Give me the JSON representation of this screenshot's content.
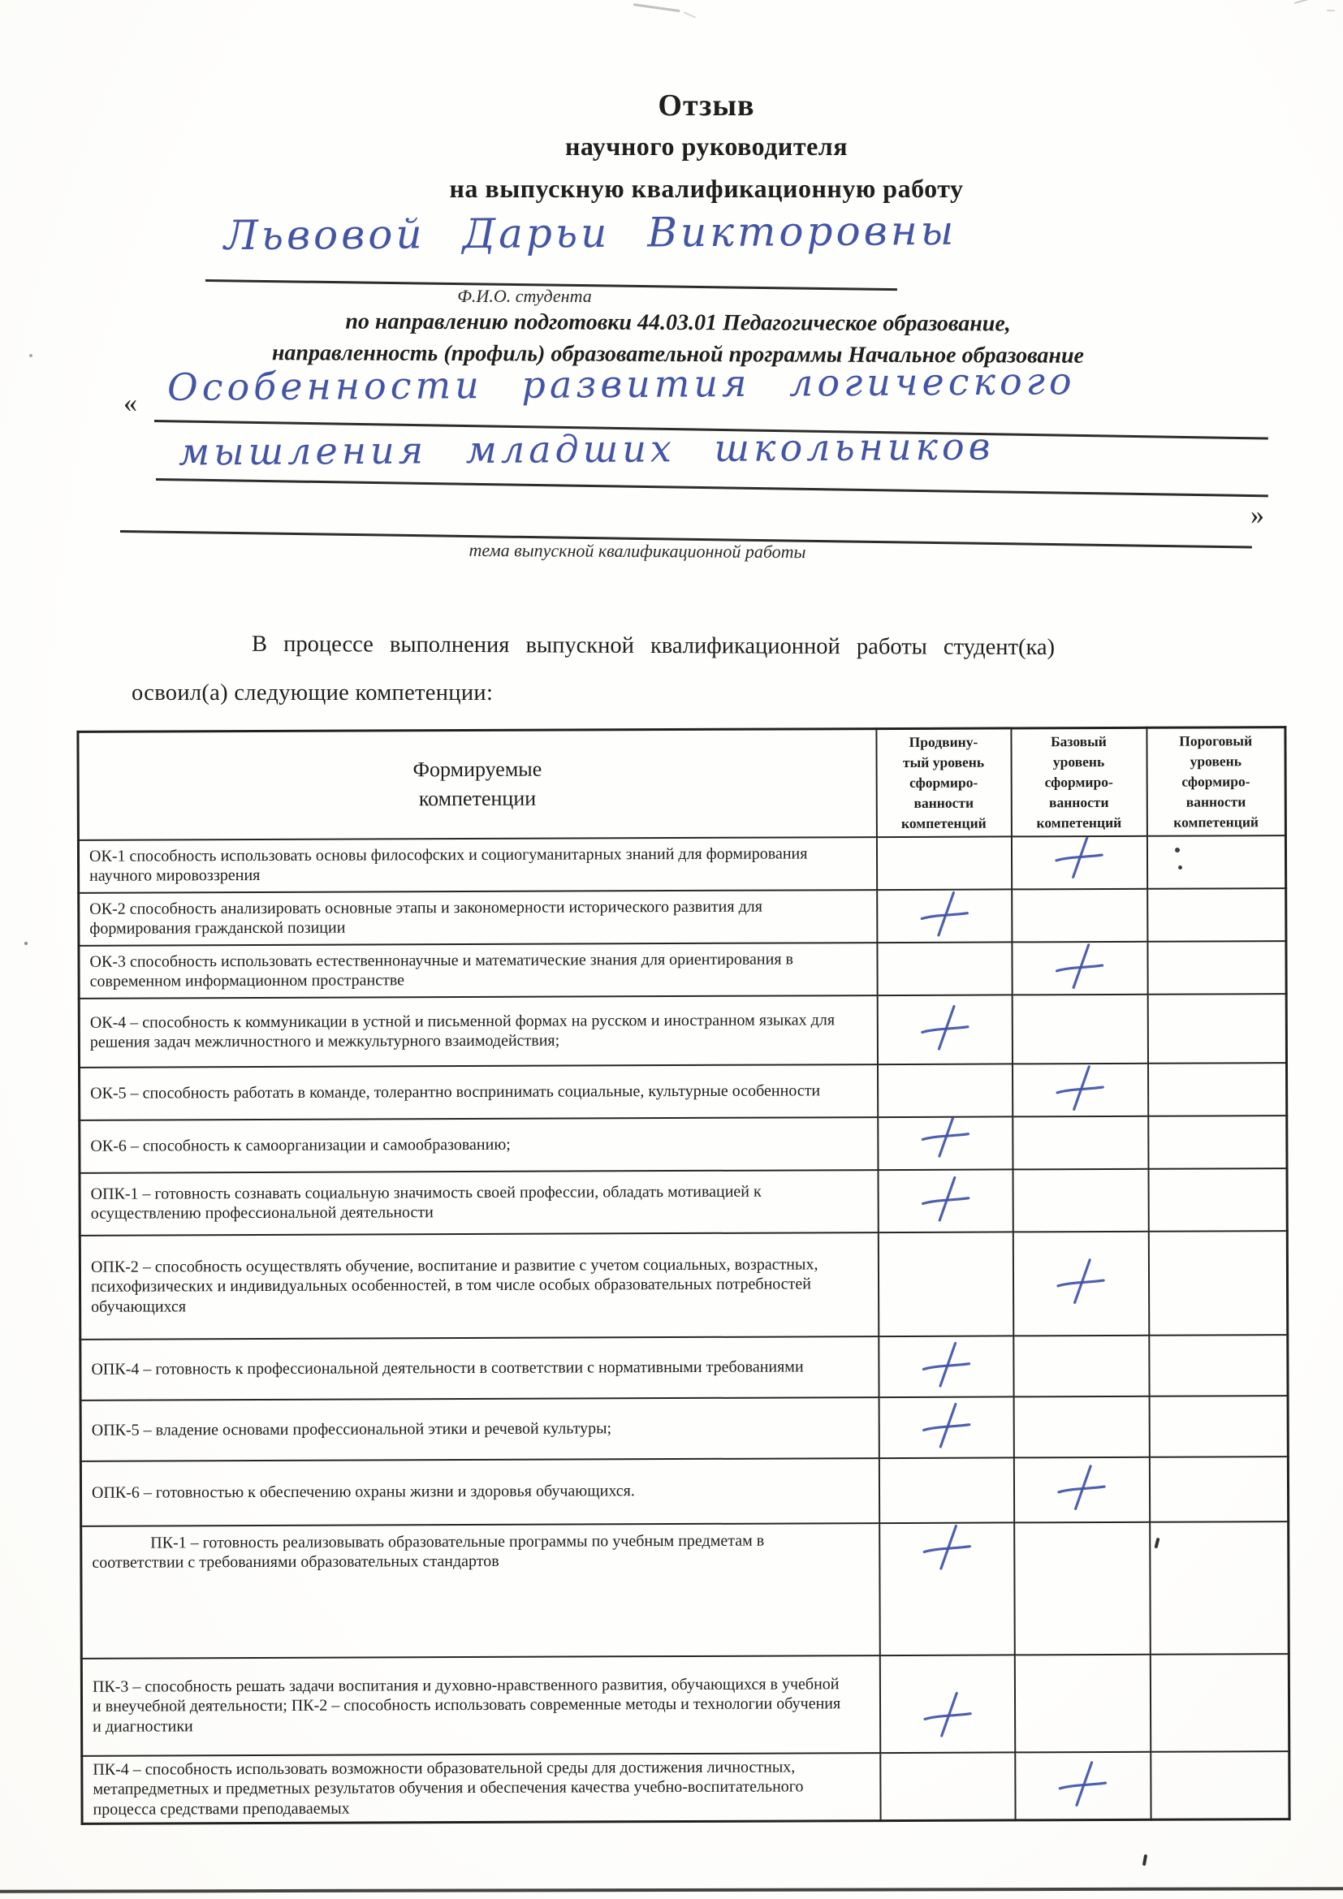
{
  "document": {
    "title_line1": "Отзыв",
    "title_line2": "научного руководителя",
    "title_line3": "на выпускную квалификационную работу",
    "student_name": "Львовой Дарьи Викторовны",
    "student_name_caption": "Ф.И.О. студента",
    "program_line1": "по направлению подготовки 44.03.01 Педагогическое образование,",
    "program_line2": "направленность (профиль) образовательной программы Начальное образование",
    "open_quote": "«",
    "close_quote": "»",
    "topic_line1": "Особенности развития логического",
    "topic_line2": "мышления младших школьников",
    "topic_caption": "тема выпускной квалификационной работы",
    "intro_line1": "В процессе выполнения выпускной квалификационной работы студент(ка)",
    "intro_line2": "освоил(а) следующие компетенции:"
  },
  "competency_table": {
    "column_headers": {
      "competencies": [
        "Формируемые",
        "компетенции"
      ],
      "advanced": [
        "Продвину-",
        "тый уровень",
        "сформиро-",
        "ванности",
        "компетенций"
      ],
      "basic": [
        "Базовый",
        "уровень",
        "сформиро-",
        "ванности",
        "компетенций"
      ],
      "threshold": [
        "Пороговый",
        "уровень",
        "сформиро-",
        "ванности",
        "компетенций"
      ]
    },
    "rows": [
      {
        "code": "ОК-1",
        "text": "ОК-1 способность использовать основы философских и социогуманитарных знаний для формирования научного мировоззрения",
        "level": "basic"
      },
      {
        "code": "ОК-2",
        "text": "ОК-2 способность анализировать основные этапы и закономерности  исторического развития для формирования гражданской позиции",
        "level": "advanced"
      },
      {
        "code": "ОК-3",
        "text": "ОК-3 способность использовать естественнонаучные и математические знания для ориентирования в современном информационном пространстве",
        "level": "basic"
      },
      {
        "code": "ОК-4",
        "text": "ОК-4 – способность к коммуникации в устной и письменной формах на русском и иностранном языках для решения задач межличностного и межкультурного взаимодействия;",
        "level": "advanced"
      },
      {
        "code": "ОК-5",
        "text": "ОК-5 –  способность работать в команде, толерантно воспринимать социальные, культурные особенности",
        "level": "basic"
      },
      {
        "code": "ОК-6",
        "text": "ОК-6 – способность к самоорганизации и самообразованию;",
        "level": "advanced"
      },
      {
        "code": "ОПК-1",
        "text": "ОПК-1 – готовность сознавать социальную значимость своей профессии, обладать мотивацией к осуществлению профессиональной деятельности",
        "level": "advanced"
      },
      {
        "code": "ОПК-2",
        "text": "ОПК-2 – способность осуществлять обучение, воспитание и развитие с учетом социальных, возрастных, психофизических и индивидуальных особенностей, в том числе особых образовательных потребностей обучающихся",
        "level": "basic"
      },
      {
        "code": "ОПК-4",
        "text": "ОПК-4 – готовность к профессиональной деятельности в соответствии с нормативными требованиями",
        "level": "advanced"
      },
      {
        "code": "ОПК-5",
        "text": "ОПК-5 – владение основами профессиональной этики и речевой культуры;",
        "level": "advanced"
      },
      {
        "code": "ОПК-6",
        "text": "ОПК-6 – готовностью к обеспечению охраны жизни и здоровья обучающихся.",
        "level": "basic"
      },
      {
        "code": "ПК-1",
        "text": "ПК-1 – готовность реализовывать образовательные программы по учебным предметам в соответствии с требованиями образовательных стандартов",
        "level": "advanced"
      },
      {
        "code": "ПК-3/ПК-2",
        "text": "ПК-3 – способность решать задачи воспитания и духовно-нравственного развития, обучающихся в учебной и внеучебной деятельности; ПК-2 – способность использовать современные методы и технологии обучения и диагностики",
        "level": "advanced"
      },
      {
        "code": "ПК-4",
        "text": "ПК-4 – способность использовать возможности образовательной среды для достижения личностных, метапредметных и предметных результатов обучения и обеспечения качества учебно-воспитательного процесса средствами преподаваемых",
        "level": "basic"
      }
    ]
  },
  "ink_colors": {
    "pen_blue": "#3f52a6",
    "print_black": "#1f1f1f"
  }
}
